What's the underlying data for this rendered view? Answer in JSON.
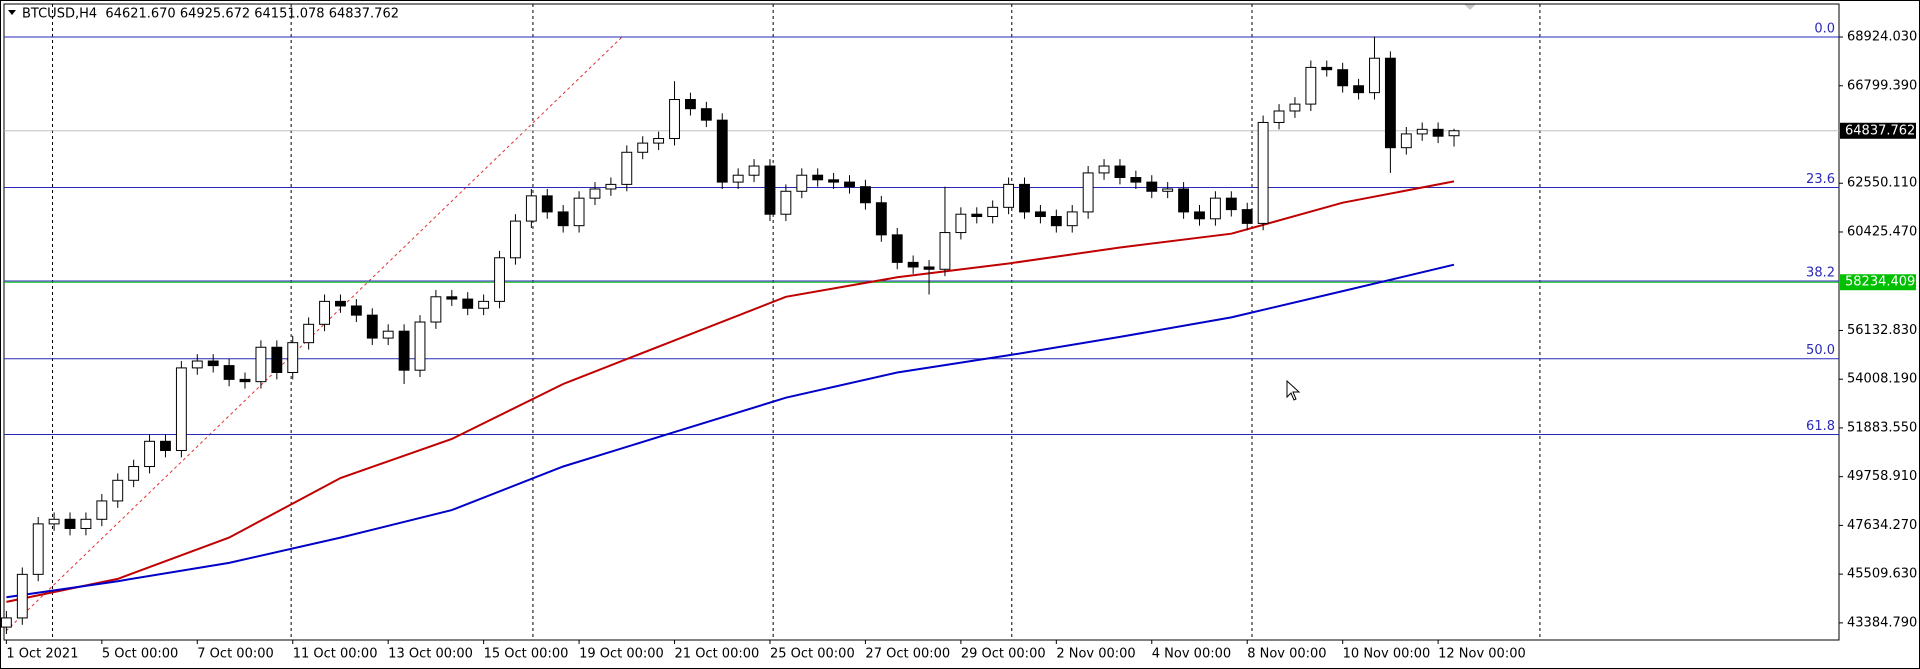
{
  "header": "BTCUSD,H4  64621.670 64925.672 64151.078 64837.762",
  "chart_data": {
    "type": "candlestick",
    "up_color": "#ffffff",
    "down_color": "#000000",
    "open": [
      43200,
      43600,
      45500,
      47700,
      47900,
      47500,
      47900,
      48700,
      49600,
      50200,
      51300,
      50900,
      54500,
      54800,
      54600,
      54000,
      53900,
      55400,
      54300,
      55600,
      56400,
      57400,
      57200,
      56800,
      55800,
      56100,
      54400,
      56500,
      57600,
      57500,
      57100,
      57400,
      59300,
      60900,
      62000,
      61300,
      60700,
      61900,
      62300,
      62500,
      63900,
      64300,
      64500,
      66200,
      65800,
      65300,
      62600,
      62900,
      63300,
      61200,
      62200,
      62900,
      62700,
      62600,
      62400,
      61700,
      60300,
      59100,
      58900,
      58800,
      60400,
      61200,
      61100,
      61500,
      62500,
      61300,
      61100,
      60700,
      61300,
      63000,
      63300,
      62800,
      62600,
      62200,
      62300,
      61300,
      61000,
      61900,
      61400,
      60800,
      65200,
      65700,
      66000,
      67600,
      67500,
      66800,
      66500,
      68000,
      64100,
      64700,
      64900,
      64621.67
    ],
    "high": [
      43900,
      45800,
      48000,
      48200,
      48200,
      48200,
      49000,
      49900,
      50500,
      51600,
      51600,
      54800,
      55100,
      55100,
      54900,
      54300,
      55700,
      55700,
      55900,
      56700,
      57700,
      57700,
      57500,
      57100,
      56400,
      56400,
      56800,
      57900,
      57900,
      57800,
      57700,
      59600,
      61200,
      62300,
      62300,
      61600,
      62200,
      62600,
      62800,
      64200,
      64600,
      64800,
      67000,
      66500,
      66100,
      65600,
      63200,
      63600,
      63600,
      62500,
      63200,
      63200,
      63000,
      62900,
      62700,
      62000,
      60600,
      59400,
      59200,
      62400,
      61500,
      61500,
      61800,
      62800,
      62800,
      61600,
      61400,
      61600,
      63300,
      63600,
      63600,
      63100,
      62900,
      62600,
      62600,
      61600,
      62200,
      62200,
      61700,
      65500,
      66000,
      66300,
      67900,
      67900,
      67800,
      67100,
      68950,
      68300,
      65000,
      65200,
      65200,
      64925.672
    ],
    "low": [
      42900,
      43300,
      45200,
      47400,
      47200,
      47200,
      47600,
      48400,
      49300,
      49900,
      50600,
      50600,
      54200,
      54300,
      53700,
      53600,
      53600,
      54000,
      54000,
      55300,
      56100,
      56900,
      56500,
      55500,
      55500,
      53800,
      54100,
      56200,
      57200,
      56800,
      56800,
      57100,
      59000,
      60600,
      61000,
      60400,
      60400,
      61600,
      62000,
      62200,
      63600,
      64000,
      64200,
      65500,
      65000,
      62300,
      62300,
      62600,
      60900,
      60900,
      61900,
      62400,
      62300,
      62100,
      61400,
      60000,
      58800,
      58600,
      57700,
      58500,
      60100,
      60800,
      60800,
      61200,
      61000,
      60800,
      60400,
      60400,
      61000,
      62700,
      62500,
      62300,
      61900,
      61900,
      61000,
      60700,
      60700,
      61100,
      60500,
      60500,
      64900,
      65400,
      65700,
      67200,
      66500,
      66200,
      66200,
      63000,
      63800,
      64400,
      64300,
      64151.078
    ],
    "close": [
      43600,
      45500,
      47700,
      47900,
      47500,
      47900,
      48700,
      49600,
      50200,
      51300,
      50900,
      54500,
      54800,
      54600,
      54000,
      53900,
      55400,
      54300,
      55600,
      56400,
      57400,
      57200,
      56800,
      55800,
      56100,
      54400,
      56500,
      57600,
      57500,
      57100,
      57400,
      59300,
      60900,
      62000,
      61300,
      60700,
      61900,
      62300,
      62500,
      63900,
      64300,
      64500,
      66200,
      65800,
      65300,
      62600,
      62900,
      63300,
      61200,
      62200,
      62900,
      62700,
      62600,
      62400,
      61700,
      60300,
      59100,
      58900,
      58800,
      60400,
      61200,
      61100,
      61500,
      62500,
      61300,
      61100,
      60700,
      61300,
      63000,
      63300,
      62800,
      62600,
      62200,
      62300,
      61300,
      61000,
      61900,
      61400,
      60800,
      65200,
      65700,
      66000,
      67600,
      67500,
      66800,
      66500,
      68000,
      64100,
      64700,
      64900,
      64600,
      64837.762
    ],
    "series": [
      {
        "color": "#c00000",
        "x": [
          0,
          7,
          14,
          21,
          28,
          35,
          42,
          49,
          56,
          63,
          70,
          77,
          84,
          91
        ],
        "values": [
          44300,
          45300,
          47100,
          49700,
          51400,
          53800,
          55700,
          57600,
          58450,
          59050,
          59750,
          60350,
          61700,
          62630
        ]
      },
      {
        "color": "#0000c8",
        "x": [
          0,
          7,
          14,
          21,
          28,
          35,
          42,
          49,
          56,
          63,
          70,
          77,
          84,
          91
        ],
        "values": [
          44500,
          45200,
          46000,
          47100,
          48300,
          50200,
          51700,
          53200,
          54300,
          55050,
          55850,
          56700,
          57850,
          59000
        ]
      }
    ],
    "xlim": [
      -0.15,
      115.2
    ],
    "ylim": [
      42638,
      70364
    ],
    "xticks": [
      {
        "value": 0,
        "label": "1 Oct 2021"
      },
      {
        "value": 6,
        "label": "5 Oct 00:00"
      },
      {
        "value": 12,
        "label": "7 Oct 00:00"
      },
      {
        "value": 18,
        "label": "11 Oct 00:00"
      },
      {
        "value": 24,
        "label": "13 Oct 00:00"
      },
      {
        "value": 30,
        "label": "15 Oct 00:00"
      },
      {
        "value": 36,
        "label": "19 Oct 00:00"
      },
      {
        "value": 42,
        "label": "21 Oct 00:00"
      },
      {
        "value": 48,
        "label": "25 Oct 00:00"
      },
      {
        "value": 54,
        "label": "27 Oct 00:00"
      },
      {
        "value": 60,
        "label": "29 Oct 00:00"
      },
      {
        "value": 66,
        "label": "2 Nov 00:00"
      },
      {
        "value": 72,
        "label": "4 Nov 00:00"
      },
      {
        "value": 78,
        "label": "8 Nov 00:00"
      },
      {
        "value": 84,
        "label": "10 Nov 00:00"
      },
      {
        "value": 90,
        "label": "12 Nov 00:00"
      }
    ],
    "xgrid": [
      2.9,
      17.9,
      33.1,
      48.2,
      63.2,
      78.3,
      96.4
    ],
    "yticks": [
      {
        "value": 68924.03,
        "label": "68924.030"
      },
      {
        "value": 66799.39,
        "label": "66799.390"
      },
      {
        "value": 62550.11,
        "label": "62550.110"
      },
      {
        "value": 60425.47,
        "label": "60425.470"
      },
      {
        "value": 56132.83,
        "label": "56132.830"
      },
      {
        "value": 54008.19,
        "label": "54008.190"
      },
      {
        "value": 51883.55,
        "label": "51883.550"
      },
      {
        "value": 49758.91,
        "label": "49758.910"
      },
      {
        "value": 47634.27,
        "label": "47634.270"
      },
      {
        "value": 45509.63,
        "label": "45509.630"
      },
      {
        "value": 43384.79,
        "label": "43384.790"
      }
    ],
    "fibo": {
      "color": "#2a2ab8",
      "levels": [
        {
          "label": "0.0",
          "value": 68924.03
        },
        {
          "label": "23.6",
          "value": 62365
        },
        {
          "label": "38.2",
          "value": 58290
        },
        {
          "label": "50.0",
          "value": 54901
        },
        {
          "label": "61.8",
          "value": 51595
        }
      ]
    },
    "level_line": {
      "value": 58234.409,
      "color": "#00c000"
    },
    "price_line": {
      "value": 64837.762,
      "color": "#c0c0c0"
    }
  }
}
